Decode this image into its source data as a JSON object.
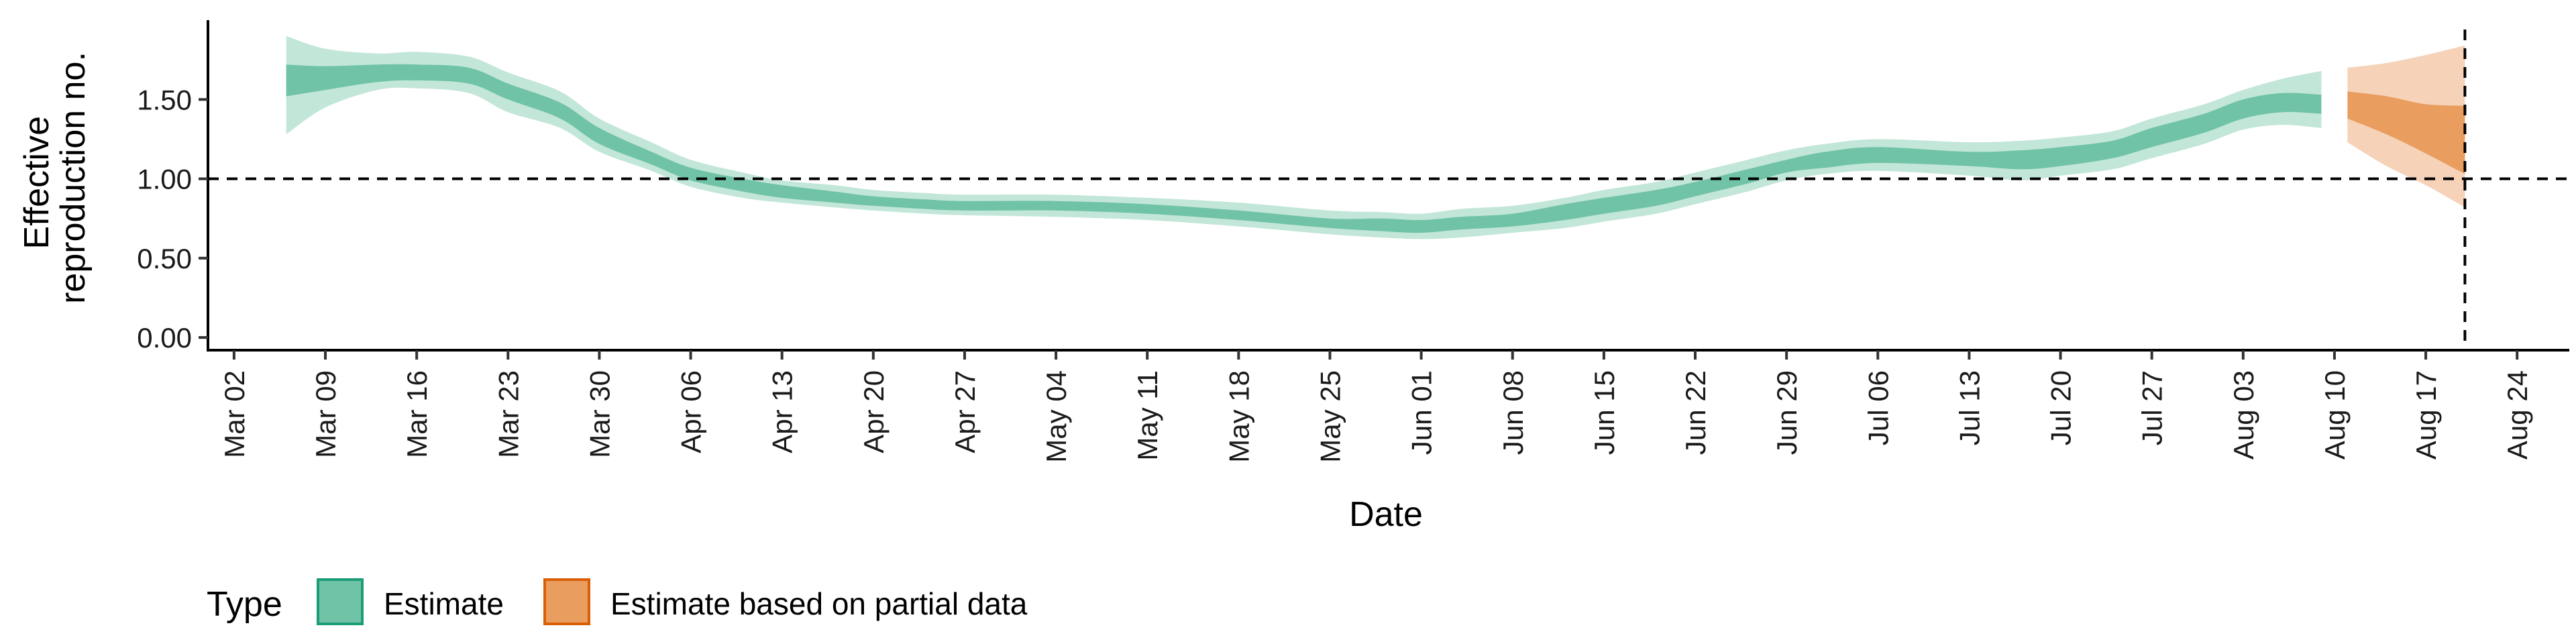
{
  "chart_data": {
    "type": "area",
    "xlabel": "Date",
    "ylabel_lines": [
      "Effective",
      "reproduction no."
    ],
    "x_start": "2020-02-29",
    "x_end": "2020-08-28",
    "ylim": [
      -0.08,
      2.0
    ],
    "y_ticks": [
      0.0,
      0.5,
      1.0,
      1.5
    ],
    "y_tick_labels": [
      "0.00",
      "0.50",
      "1.00",
      "1.50"
    ],
    "x_ticks": [
      "2020-03-02",
      "2020-03-09",
      "2020-03-16",
      "2020-03-23",
      "2020-03-30",
      "2020-04-06",
      "2020-04-13",
      "2020-04-20",
      "2020-04-27",
      "2020-05-04",
      "2020-05-11",
      "2020-05-18",
      "2020-05-25",
      "2020-06-01",
      "2020-06-08",
      "2020-06-15",
      "2020-06-22",
      "2020-06-29",
      "2020-07-06",
      "2020-07-13",
      "2020-07-20",
      "2020-07-27",
      "2020-08-03",
      "2020-08-10",
      "2020-08-17",
      "2020-08-24"
    ],
    "x_tick_labels": [
      "Mar 02",
      "Mar 09",
      "Mar 16",
      "Mar 23",
      "Mar 30",
      "Apr 06",
      "Apr 13",
      "Apr 20",
      "Apr 27",
      "May 04",
      "May 11",
      "May 18",
      "May 25",
      "Jun 01",
      "Jun 08",
      "Jun 15",
      "Jun 22",
      "Jun 29",
      "Jul 06",
      "Jul 13",
      "Jul 20",
      "Jul 27",
      "Aug 03",
      "Aug 10",
      "Aug 17",
      "Aug 24"
    ],
    "hline_y": 1.0,
    "vline_x": "2020-08-20",
    "legend": {
      "title": "Type",
      "placement": "bottom-left",
      "entries": [
        {
          "label": "Estimate",
          "fill": "#70c3a7",
          "border": "#1b9e77"
        },
        {
          "label": "Estimate based on partial data",
          "fill": "#e99d5f",
          "border": "#d95f02"
        }
      ]
    },
    "series": [
      {
        "name": "Estimate",
        "color_outer": "#c2e6d8",
        "color_inner": "#70c3a7",
        "x": [
          "2020-03-06",
          "2020-03-09",
          "2020-03-13",
          "2020-03-16",
          "2020-03-20",
          "2020-03-23",
          "2020-03-27",
          "2020-03-30",
          "2020-04-03",
          "2020-04-06",
          "2020-04-10",
          "2020-04-13",
          "2020-04-17",
          "2020-04-20",
          "2020-04-24",
          "2020-04-27",
          "2020-05-04",
          "2020-05-11",
          "2020-05-18",
          "2020-05-25",
          "2020-05-29",
          "2020-06-01",
          "2020-06-04",
          "2020-06-08",
          "2020-06-12",
          "2020-06-15",
          "2020-06-19",
          "2020-06-22",
          "2020-06-26",
          "2020-06-29",
          "2020-07-02",
          "2020-07-06",
          "2020-07-13",
          "2020-07-17",
          "2020-07-20",
          "2020-07-24",
          "2020-07-27",
          "2020-07-31",
          "2020-08-03",
          "2020-08-06",
          "2020-08-09"
        ],
        "median": [
          1.62,
          1.63,
          1.66,
          1.67,
          1.65,
          1.55,
          1.43,
          1.27,
          1.13,
          1.03,
          0.96,
          0.92,
          0.89,
          0.86,
          0.84,
          0.83,
          0.83,
          0.81,
          0.77,
          0.72,
          0.71,
          0.7,
          0.72,
          0.74,
          0.79,
          0.83,
          0.88,
          0.93,
          1.01,
          1.08,
          1.12,
          1.15,
          1.12,
          1.12,
          1.14,
          1.18,
          1.26,
          1.35,
          1.44,
          1.48,
          1.47
        ],
        "lower90": [
          1.28,
          1.45,
          1.56,
          1.57,
          1.54,
          1.42,
          1.32,
          1.17,
          1.05,
          0.95,
          0.88,
          0.85,
          0.82,
          0.8,
          0.78,
          0.77,
          0.76,
          0.74,
          0.7,
          0.65,
          0.63,
          0.62,
          0.63,
          0.66,
          0.69,
          0.73,
          0.78,
          0.84,
          0.92,
          0.99,
          1.03,
          1.05,
          1.02,
          0.99,
          1.02,
          1.06,
          1.13,
          1.22,
          1.31,
          1.34,
          1.32
        ],
        "upper90": [
          1.9,
          1.82,
          1.79,
          1.8,
          1.77,
          1.67,
          1.55,
          1.38,
          1.23,
          1.12,
          1.04,
          0.99,
          0.96,
          0.93,
          0.91,
          0.9,
          0.9,
          0.88,
          0.85,
          0.8,
          0.79,
          0.78,
          0.81,
          0.83,
          0.88,
          0.93,
          0.98,
          1.04,
          1.12,
          1.18,
          1.22,
          1.25,
          1.23,
          1.24,
          1.26,
          1.3,
          1.38,
          1.47,
          1.56,
          1.63,
          1.68
        ],
        "lower50": [
          1.52,
          1.56,
          1.61,
          1.62,
          1.6,
          1.5,
          1.38,
          1.22,
          1.09,
          0.99,
          0.92,
          0.88,
          0.85,
          0.83,
          0.81,
          0.8,
          0.8,
          0.78,
          0.74,
          0.69,
          0.67,
          0.66,
          0.68,
          0.7,
          0.74,
          0.78,
          0.83,
          0.89,
          0.97,
          1.04,
          1.07,
          1.1,
          1.08,
          1.06,
          1.08,
          1.13,
          1.2,
          1.29,
          1.38,
          1.42,
          1.41
        ],
        "upper50": [
          1.72,
          1.71,
          1.72,
          1.72,
          1.7,
          1.6,
          1.48,
          1.32,
          1.17,
          1.07,
          1.0,
          0.96,
          0.92,
          0.89,
          0.87,
          0.86,
          0.86,
          0.84,
          0.8,
          0.75,
          0.75,
          0.74,
          0.76,
          0.78,
          0.84,
          0.88,
          0.93,
          0.98,
          1.06,
          1.12,
          1.17,
          1.2,
          1.17,
          1.18,
          1.2,
          1.24,
          1.32,
          1.41,
          1.5,
          1.54,
          1.53
        ]
      },
      {
        "name": "Estimate based on partial data",
        "color_outer": "#f5d2b8",
        "color_inner": "#e99d5f",
        "x": [
          "2020-08-11",
          "2020-08-14",
          "2020-08-17",
          "2020-08-20"
        ],
        "median": [
          1.46,
          1.4,
          1.3,
          1.18
        ],
        "lower90": [
          1.23,
          1.08,
          0.96,
          0.82
        ],
        "upper90": [
          1.7,
          1.73,
          1.78,
          1.84
        ],
        "lower50": [
          1.38,
          1.28,
          1.16,
          1.03
        ],
        "upper50": [
          1.55,
          1.52,
          1.47,
          1.46
        ]
      }
    ]
  }
}
